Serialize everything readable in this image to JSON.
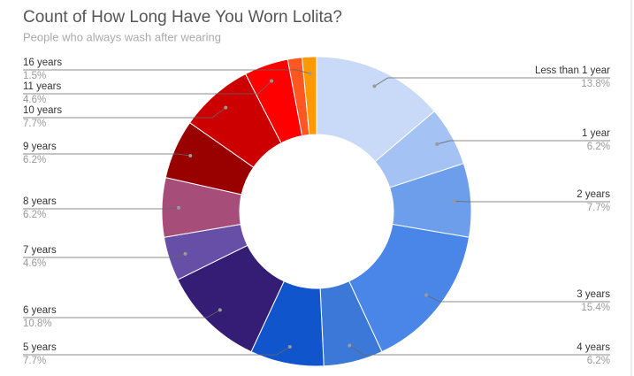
{
  "chart_data": {
    "type": "donut",
    "title": "Count of How Long Have You Worn Lolita?",
    "subtitle": "People who always wash after wearing",
    "categories": [
      "Less than 1 year",
      "1 year",
      "2 years",
      "3 years",
      "4 years",
      "5 years",
      "6 years",
      "7 years",
      "8 years",
      "9 years",
      "10 years",
      "11 years",
      null,
      "16 years"
    ],
    "values": [
      13.8,
      6.2,
      7.7,
      15.4,
      6.2,
      7.7,
      10.8,
      4.6,
      6.2,
      6.2,
      7.7,
      4.6,
      1.5,
      1.5
    ],
    "value_labels": [
      "13.8%",
      "6.2%",
      "7.7%",
      "15.4%",
      "6.2%",
      "7.7%",
      "10.8%",
      "4.6%",
      "6.2%",
      "6.2%",
      "7.7%",
      "4.6%",
      null,
      "1.5%"
    ],
    "colors": [
      "#c9daf8",
      "#a4c2f4",
      "#6d9eeb",
      "#4a86e8",
      "#3c78d8",
      "#1155cc",
      "#351c75",
      "#674ea7",
      "#a64d79",
      "#990000",
      "#cc0000",
      "#ff0000",
      "#ff5722",
      "#ff9900"
    ]
  }
}
